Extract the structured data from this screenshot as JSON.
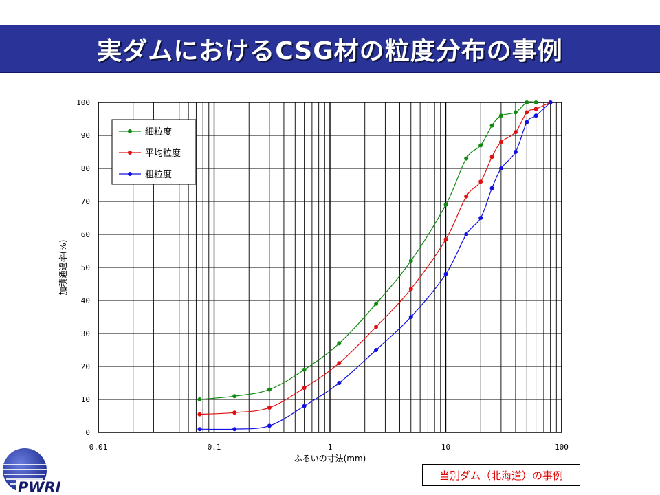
{
  "slide": {
    "title": "実ダムにおけるCSG材の粒度分布の事例",
    "caption": "当別ダム（北海道）の事例",
    "logo_text": "PWRI"
  },
  "colors": {
    "banner": "#2a3498",
    "fine": "#108a10",
    "average": "#e01010",
    "coarse": "#1010e0",
    "caption": "#e00000"
  },
  "chart_data": {
    "type": "line",
    "xscale": "log",
    "xlabel": "ふるいの寸法(mm)",
    "ylabel": "加積通過率(%)",
    "xlim": [
      0.01,
      100
    ],
    "ylim": [
      0,
      100
    ],
    "xticks": [
      0.01,
      0.1,
      1,
      10,
      100
    ],
    "xtick_labels": [
      "0.01",
      "0.1",
      "1",
      "10",
      "100"
    ],
    "yticks": [
      0,
      10,
      20,
      30,
      40,
      50,
      60,
      70,
      80,
      90,
      100
    ],
    "grid": true,
    "legend_position": "top-left",
    "series": [
      {
        "name": "細粒度",
        "color": "#108a10",
        "x": [
          0.075,
          0.15,
          0.3,
          0.6,
          1.2,
          2.5,
          5,
          10,
          15,
          20,
          25,
          30,
          40,
          50,
          60
        ],
        "y": [
          10,
          11,
          13,
          19,
          27,
          39,
          52,
          69,
          83,
          87,
          93,
          96,
          97,
          100,
          100
        ]
      },
      {
        "name": "平均粒度",
        "color": "#e01010",
        "x": [
          0.075,
          0.15,
          0.3,
          0.6,
          1.2,
          2.5,
          5,
          10,
          15,
          20,
          25,
          30,
          40,
          50,
          60,
          80
        ],
        "y": [
          5.5,
          6,
          7.5,
          13.5,
          21,
          32,
          43.5,
          58.5,
          71.5,
          76,
          83.5,
          88,
          91,
          97,
          98,
          100
        ]
      },
      {
        "name": "粗粒度",
        "color": "#1010e0",
        "x": [
          0.075,
          0.15,
          0.3,
          0.6,
          1.2,
          2.5,
          5,
          10,
          15,
          20,
          25,
          30,
          40,
          50,
          60,
          80
        ],
        "y": [
          1,
          1,
          2,
          8,
          15,
          25,
          35,
          48,
          60,
          65,
          74,
          80,
          85,
          94,
          96,
          100
        ]
      }
    ]
  }
}
